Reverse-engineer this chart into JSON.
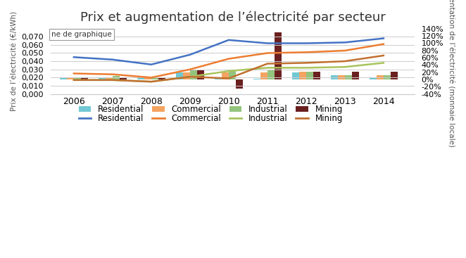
{
  "title": "Prix et augmentation de l’électricité par secteur",
  "ylabel_left": "Prix de l’électricité (€/kWh)",
  "ylabel_right": "Augmentation de l’électricité (monnaie locale)",
  "years": [
    2006,
    2007,
    2008,
    2009,
    2010,
    2011,
    2012,
    2013,
    2014
  ],
  "bar_residential": [
    0.05,
    0.04,
    0.04,
    0.2,
    0.04,
    0.02,
    0.2,
    0.12,
    0.04
  ],
  "bar_commercial": [
    0.05,
    0.04,
    0.04,
    0.2,
    0.2,
    0.2,
    0.22,
    0.12,
    0.12
  ],
  "bar_industrial": [
    0.05,
    0.1,
    0.04,
    0.25,
    0.25,
    0.25,
    0.22,
    0.12,
    0.12
  ],
  "bar_mining": [
    0.05,
    0.04,
    0.04,
    0.25,
    -0.25,
    1.3,
    0.22,
    0.22,
    0.22
  ],
  "line_residential": [
    0.045,
    0.042,
    0.036,
    0.048,
    0.066,
    0.062,
    0.062,
    0.063,
    0.068
  ],
  "line_commercial": [
    0.025,
    0.024,
    0.02,
    0.03,
    0.043,
    0.05,
    0.051,
    0.053,
    0.061
  ],
  "line_industrial": [
    0.017,
    0.017,
    0.015,
    0.021,
    0.028,
    0.032,
    0.032,
    0.033,
    0.038
  ],
  "line_mining": [
    0.017,
    0.017,
    0.015,
    0.021,
    0.019,
    0.037,
    0.038,
    0.04,
    0.047
  ],
  "bar_colors": {
    "residential": "#70C8D4",
    "commercial": "#F4A460",
    "industrial": "#93C47D",
    "mining": "#6B2020"
  },
  "line_colors": {
    "residential": "#4472C4",
    "commercial": "#ED7D31",
    "industrial": "#A9C45D",
    "mining": "#C07030"
  },
  "ylim_left": [
    0.0,
    0.08
  ],
  "ylim_right": [
    -0.4,
    1.4
  ],
  "yticks_left": [
    0.0,
    0.01,
    0.02,
    0.03,
    0.04,
    0.05,
    0.06,
    0.07
  ],
  "yticks_right_vals": [
    -0.4,
    -0.2,
    0.0,
    0.2,
    0.4,
    0.6,
    0.8,
    1.0,
    1.2,
    1.4
  ],
  "yticks_right_labels": [
    "-40%",
    "-20%",
    "0%",
    "20%",
    "40%",
    "60%",
    "80%",
    "100%",
    "120%",
    "140%"
  ],
  "bar_width": 0.18,
  "background_color": "#FFFFFF",
  "grid_color": "#CCCCCC",
  "legend_bar_labels": [
    "Residential",
    "Commercial",
    "Industrial",
    "Mining"
  ],
  "legend_line_labels": [
    "Residential",
    "Commercial",
    "Industrial",
    "Mining"
  ],
  "toolbar_text": "ne de graphique"
}
